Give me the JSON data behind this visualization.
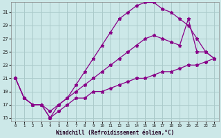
{
  "xlabel": "Windchill (Refroidissement éolien,°C)",
  "xlim": [
    -0.5,
    23.5
  ],
  "ylim": [
    14.5,
    32.5
  ],
  "xticks": [
    0,
    1,
    2,
    3,
    4,
    5,
    6,
    7,
    8,
    9,
    10,
    11,
    12,
    13,
    14,
    15,
    16,
    17,
    18,
    19,
    20,
    21,
    22,
    23
  ],
  "yticks": [
    15,
    17,
    19,
    21,
    23,
    25,
    27,
    29,
    31
  ],
  "bg_color": "#cce8e8",
  "grid_color": "#aacaca",
  "line_color": "#880088",
  "line1_x": [
    0,
    1,
    2,
    3,
    4,
    5,
    6,
    7,
    8,
    9,
    10,
    11,
    12,
    13,
    14,
    15,
    16,
    17,
    18,
    19,
    20,
    21,
    22,
    23
  ],
  "line1_y": [
    21,
    18,
    17,
    17,
    15,
    17,
    18,
    20,
    22,
    24,
    26,
    28,
    30,
    31,
    32,
    32.5,
    32.5,
    31.5,
    31,
    30,
    29,
    27,
    25,
    24
  ],
  "line2_x": [
    0,
    1,
    2,
    3,
    4,
    5,
    6,
    7,
    8,
    9,
    10,
    11,
    12,
    13,
    14,
    15,
    16,
    17,
    18,
    19,
    20,
    21,
    22,
    23
  ],
  "line2_y": [
    21,
    18,
    17,
    17,
    16,
    17,
    18,
    19,
    20,
    21,
    22,
    23,
    24,
    25,
    26,
    27,
    27.5,
    27,
    26.5,
    26,
    30,
    25,
    25,
    24
  ],
  "line3_x": [
    0,
    1,
    2,
    3,
    4,
    5,
    6,
    7,
    8,
    9,
    10,
    11,
    12,
    13,
    14,
    15,
    16,
    17,
    18,
    19,
    20,
    21,
    22,
    23
  ],
  "line3_y": [
    21,
    18,
    17,
    17,
    15,
    16,
    17,
    18,
    18,
    19,
    19,
    19.5,
    20,
    20.5,
    21,
    21,
    21.5,
    22,
    22,
    22.5,
    23,
    23,
    23.5,
    24
  ]
}
